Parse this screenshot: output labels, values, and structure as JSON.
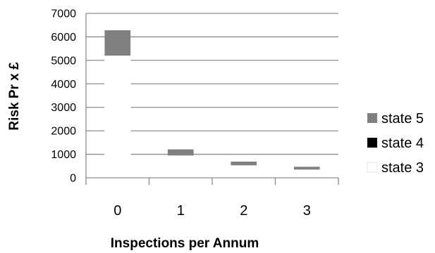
{
  "chart_data": {
    "type": "bar",
    "stacked": true,
    "title": "",
    "xlabel": "Inspections per Annum",
    "ylabel": "Risk Pr x £",
    "categories": [
      "0",
      "1",
      "2",
      "3"
    ],
    "ylim": [
      0,
      7000
    ],
    "yticks": [
      "0",
      "1000",
      "2000",
      "3000",
      "4000",
      "5000",
      "6000",
      "7000"
    ],
    "grid": true,
    "legend_position": "right",
    "series": [
      {
        "name": "state 3",
        "color": "#ffffff",
        "values": [
          5200,
          950,
          530,
          350
        ]
      },
      {
        "name": "state 4",
        "color": "#000000",
        "values": [
          0,
          0,
          0,
          0
        ]
      },
      {
        "name": "state 5",
        "color": "#808080",
        "values": [
          1080,
          260,
          160,
          120
        ]
      }
    ],
    "legend_order": [
      "state 5",
      "state 4",
      "state 3"
    ]
  }
}
